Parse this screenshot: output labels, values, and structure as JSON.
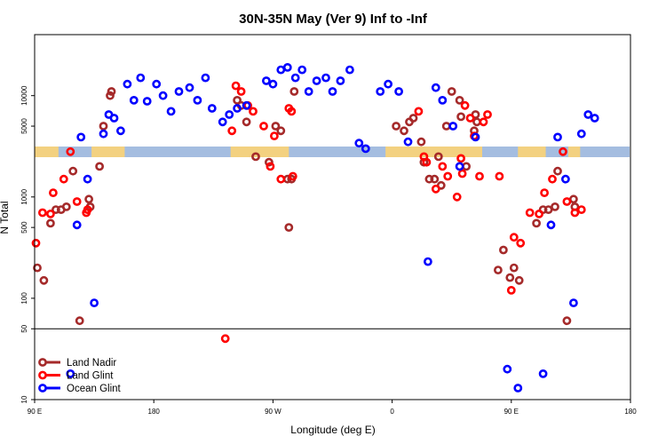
{
  "chart_data": {
    "type": "scatter",
    "title": "30N-35N May (Ver 9)   Inf to -Inf",
    "xlabel": "Longitude (deg E)",
    "ylabel": "N Total",
    "x_scale": "linear",
    "y_scale": "log",
    "xlim": [
      90,
      540
    ],
    "ylim": [
      10,
      40000
    ],
    "x_ticks": [
      {
        "value": 90,
        "label": "90 E"
      },
      {
        "value": 180,
        "label": "180"
      },
      {
        "value": 270,
        "label": "90 W"
      },
      {
        "value": 360,
        "label": "0"
      },
      {
        "value": 450,
        "label": "90 E"
      },
      {
        "value": 540,
        "label": "180"
      }
    ],
    "y_ticks": [
      {
        "value": 10,
        "label": "10"
      },
      {
        "value": 50,
        "label": "50"
      },
      {
        "value": 100,
        "label": "100"
      },
      {
        "value": 500,
        "label": "500"
      },
      {
        "value": 1000,
        "label": "1000"
      },
      {
        "value": 5000,
        "label": "5000"
      },
      {
        "value": 10000,
        "label": "10000"
      }
    ],
    "reference_line": 50,
    "legend_position": "bottom-left",
    "series": [
      {
        "name": "Land Nadir",
        "color": "#a52a2a",
        "x": [
          92,
          97,
          102,
          106,
          110,
          114,
          119,
          124,
          131,
          132,
          139,
          142,
          147,
          148,
          243,
          246,
          250,
          257,
          267,
          272,
          276,
          281,
          282,
          284,
          286,
          363,
          369,
          373,
          376,
          382,
          384,
          388,
          392,
          395,
          397,
          401,
          405,
          411,
          412,
          416,
          422,
          423,
          424,
          440,
          444,
          449,
          452,
          456,
          469,
          474,
          478,
          483,
          485,
          492,
          497,
          498
        ],
        "y": [
          200,
          150,
          550,
          750,
          750,
          800,
          1800,
          60,
          950,
          800,
          2000,
          5000,
          10000,
          11000,
          9000,
          8000,
          5500,
          2500,
          2200,
          5000,
          4500,
          1500,
          500,
          1500,
          11000,
          5000,
          4500,
          5500,
          6000,
          3500,
          2200,
          1500,
          1500,
          2500,
          1300,
          5000,
          11000,
          9000,
          6200,
          2000,
          4500,
          6500,
          5500,
          190,
          300,
          160,
          200,
          150,
          550,
          750,
          750,
          800,
          1800,
          60,
          950,
          800
        ]
      },
      {
        "name": "Land Glint",
        "color": "#ff0000",
        "x": [
          91,
          96,
          102,
          104,
          112,
          117,
          122,
          129,
          130,
          234,
          239,
          242,
          246,
          251,
          255,
          263,
          268,
          271,
          276,
          282,
          284,
          285,
          380,
          384,
          386,
          393,
          398,
          402,
          409,
          412,
          413,
          415,
          419,
          422,
          426,
          429,
          432,
          441,
          450,
          452,
          457,
          464,
          471,
          475,
          481,
          489,
          492,
          498,
          503
        ],
        "y": [
          350,
          700,
          680,
          1100,
          1500,
          2800,
          900,
          700,
          750,
          40,
          4500,
          12500,
          11000,
          8000,
          7000,
          5000,
          2000,
          4000,
          1500,
          7500,
          7000,
          1600,
          7000,
          2500,
          2200,
          1200,
          2000,
          1600,
          1000,
          2400,
          1700,
          8000,
          6000,
          4000,
          1600,
          5500,
          6500,
          1600,
          120,
          400,
          350,
          700,
          680,
          1100,
          1500,
          2800,
          900,
          700,
          750
        ]
      },
      {
        "name": "Ocean Glint",
        "color": "#0000ff",
        "x": [
          117,
          122,
          125,
          130,
          135,
          142,
          146,
          150,
          155,
          160,
          165,
          170,
          175,
          182,
          187,
          193,
          199,
          207,
          213,
          219,
          224,
          232,
          237,
          243,
          250,
          265,
          270,
          276,
          281,
          287,
          292,
          297,
          303,
          310,
          315,
          321,
          328,
          335,
          340,
          351,
          357,
          365,
          372,
          387,
          393,
          398,
          406,
          411,
          423,
          447,
          455,
          474,
          480,
          485,
          491,
          497,
          503,
          508,
          513
        ],
        "y": [
          18,
          530,
          3900,
          1500,
          90,
          4200,
          6500,
          6000,
          4500,
          13000,
          9000,
          15000,
          8800,
          13000,
          10000,
          7000,
          11000,
          12000,
          9000,
          15000,
          7500,
          5500,
          6500,
          7500,
          8000,
          14000,
          13000,
          18000,
          19000,
          15000,
          18000,
          11000,
          14000,
          15000,
          11000,
          14000,
          18000,
          3400,
          3000,
          11000,
          13000,
          11000,
          3500,
          230,
          12000,
          9000,
          5000,
          2000,
          3900,
          20,
          13,
          18,
          530,
          3900,
          1500,
          90,
          4200,
          6500,
          6000
        ]
      }
    ]
  }
}
